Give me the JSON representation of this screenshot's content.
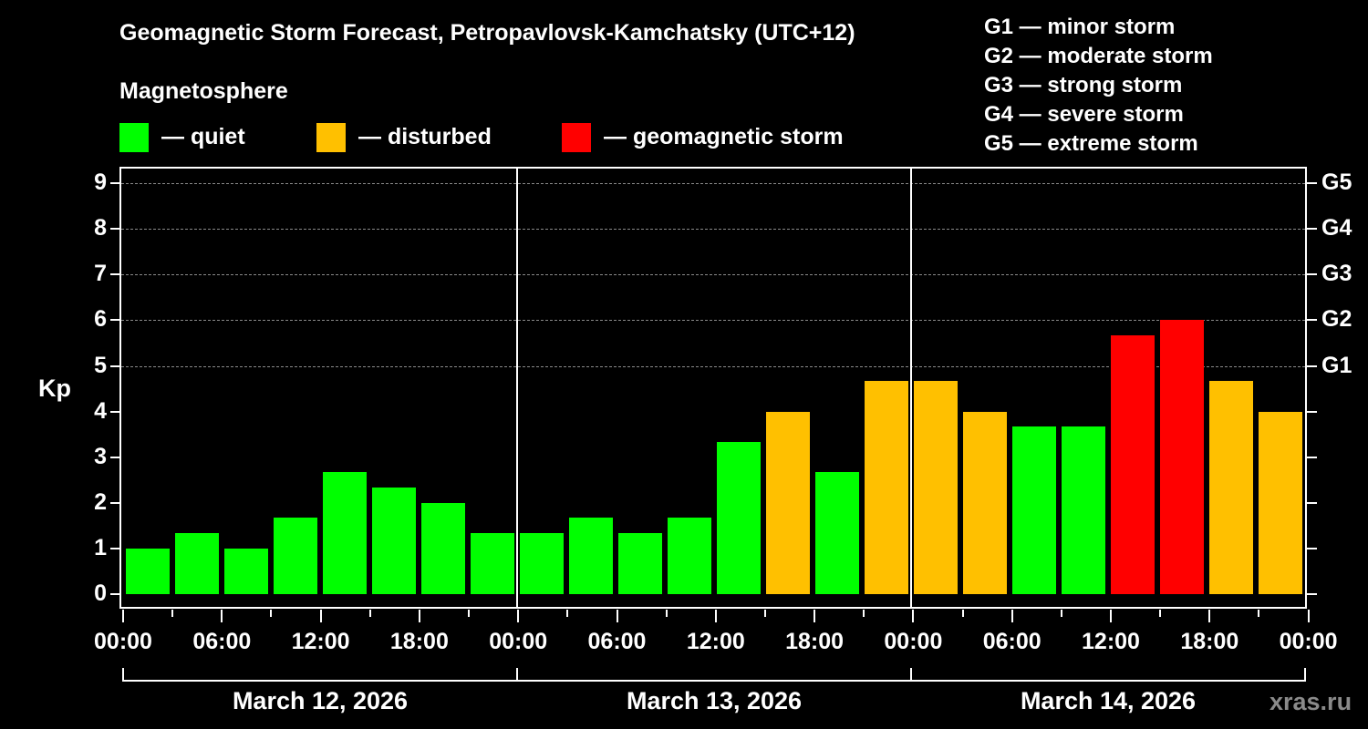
{
  "title": "Geomagnetic Storm Forecast, Petropavlovsk-Kamchatsky (UTC+12)",
  "subtitle": "Magnetosphere",
  "legend": [
    {
      "label": "— quiet",
      "color": "#00ff00"
    },
    {
      "label": "— disturbed",
      "color": "#ffc000"
    },
    {
      "label": "— geomagnetic storm",
      "color": "#ff0000"
    }
  ],
  "g_scale_legend": [
    "G1 — minor storm",
    "G2 — moderate storm",
    "G3 — strong storm",
    "G4 — severe storm",
    "G5 — extreme storm"
  ],
  "y_axis_label": "Kp",
  "y_ticks": [
    "0",
    "1",
    "2",
    "3",
    "4",
    "5",
    "6",
    "7",
    "8",
    "9"
  ],
  "g_ticks": [
    "G1",
    "G2",
    "G3",
    "G4",
    "G5"
  ],
  "x_ticks": [
    "00:00",
    "06:00",
    "12:00",
    "18:00",
    "00:00",
    "06:00",
    "12:00",
    "18:00",
    "00:00",
    "06:00",
    "12:00",
    "18:00",
    "00:00"
  ],
  "dates": [
    "March 12, 2026",
    "March 13, 2026",
    "March 14, 2026"
  ],
  "watermark": "xras.ru",
  "chart_data": {
    "type": "bar",
    "title": "Geomagnetic Storm Forecast, Petropavlovsk-Kamchatsky (UTC+12)",
    "subtitle": "Magnetosphere",
    "xlabel": "",
    "ylabel": "Kp",
    "ylim": [
      0,
      9
    ],
    "secondary_y_labels": {
      "5": "G1",
      "6": "G2",
      "7": "G3",
      "8": "G4",
      "9": "G5"
    },
    "grid": "dashed horizontal lines at Kp 5–9",
    "legend_position": "top",
    "categories": [
      "Mar 12 00:00",
      "Mar 12 03:00",
      "Mar 12 06:00",
      "Mar 12 09:00",
      "Mar 12 12:00",
      "Mar 12 15:00",
      "Mar 12 18:00",
      "Mar 12 21:00",
      "Mar 13 00:00",
      "Mar 13 03:00",
      "Mar 13 06:00",
      "Mar 13 09:00",
      "Mar 13 12:00",
      "Mar 13 15:00",
      "Mar 13 18:00",
      "Mar 13 21:00",
      "Mar 14 00:00",
      "Mar 14 03:00",
      "Mar 14 06:00",
      "Mar 14 09:00",
      "Mar 14 12:00",
      "Mar 14 15:00",
      "Mar 14 18:00",
      "Mar 14 21:00"
    ],
    "values": [
      1.0,
      1.33,
      1.0,
      1.67,
      2.67,
      2.33,
      2.0,
      1.33,
      1.33,
      1.67,
      1.33,
      1.67,
      3.33,
      4.0,
      2.67,
      4.67,
      4.67,
      4.0,
      3.67,
      3.67,
      5.67,
      6.0,
      4.67,
      4.0
    ],
    "status": [
      "quiet",
      "quiet",
      "quiet",
      "quiet",
      "quiet",
      "quiet",
      "quiet",
      "quiet",
      "quiet",
      "quiet",
      "quiet",
      "quiet",
      "quiet",
      "disturbed",
      "quiet",
      "disturbed",
      "disturbed",
      "disturbed",
      "quiet",
      "quiet",
      "storm",
      "storm",
      "disturbed",
      "disturbed"
    ],
    "status_colors": {
      "quiet": "#00ff00",
      "disturbed": "#ffc000",
      "storm": "#ff0000"
    },
    "x_tick_labels": [
      "00:00",
      "06:00",
      "12:00",
      "18:00",
      "00:00",
      "06:00",
      "12:00",
      "18:00",
      "00:00",
      "06:00",
      "12:00",
      "18:00",
      "00:00"
    ],
    "date_labels": [
      "March 12, 2026",
      "March 13, 2026",
      "March 14, 2026"
    ]
  }
}
